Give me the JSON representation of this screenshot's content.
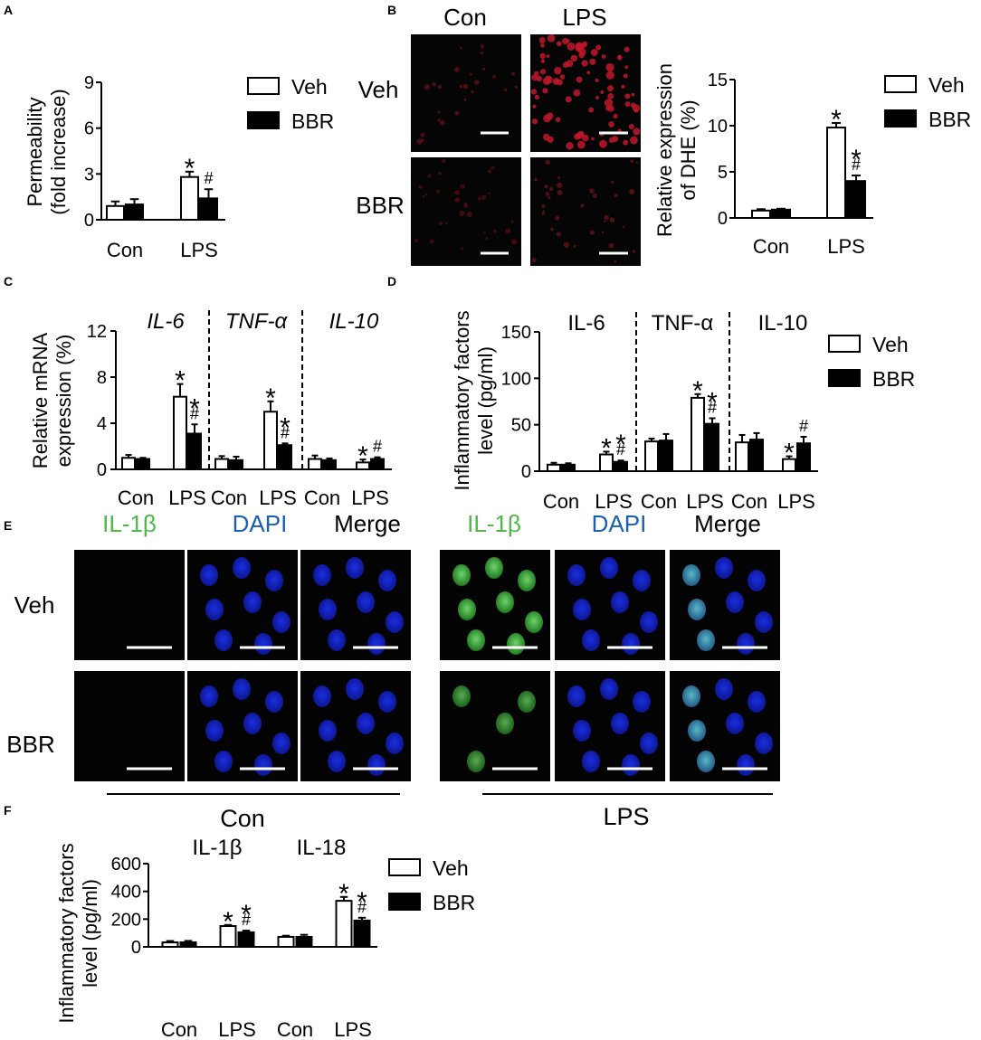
{
  "panels": {
    "a": {
      "letter": "A"
    },
    "b": {
      "letter": "B"
    },
    "c": {
      "letter": "C"
    },
    "d": {
      "letter": "D"
    },
    "e": {
      "letter": "E"
    },
    "f": {
      "letter": "F"
    }
  },
  "legend": {
    "veh": "Veh",
    "bbr": "BBR"
  },
  "annotations": {
    "star": "*",
    "hash": "#"
  },
  "colors": {
    "veh_fill": "#ffffff",
    "bbr_fill": "#000000",
    "il1b": "#4db848",
    "dapi": "#1a5fb4"
  },
  "micrographs_b": {
    "col_con": "Con",
    "col_lps": "LPS",
    "row_veh": "Veh",
    "row_bbr": "BBR"
  },
  "micrographs_e": {
    "ch_il1b": "IL-1β",
    "ch_dapi": "DAPI",
    "ch_merge": "Merge",
    "row_veh": "Veh",
    "row_bbr": "BBR",
    "group_con": "Con",
    "group_lps": "LPS"
  },
  "chart_data": [
    {
      "id": "A",
      "type": "bar",
      "ylabel": "Permeability",
      "ylabel2": "(fold increase)",
      "categories": [
        "Con",
        "LPS"
      ],
      "ylim": [
        0,
        9
      ],
      "yticks": [
        0,
        3,
        6,
        9
      ],
      "series": [
        {
          "name": "Veh",
          "values": [
            0.9,
            2.8
          ],
          "errors": [
            0.3,
            0.35
          ]
        },
        {
          "name": "BBR",
          "values": [
            1.0,
            1.4
          ],
          "errors": [
            0.35,
            0.6
          ]
        }
      ],
      "marks": [
        {
          "cat": 1,
          "s": 0,
          "text": "*"
        },
        {
          "cat": 1,
          "s": 1,
          "text": "#"
        }
      ]
    },
    {
      "id": "B",
      "type": "bar",
      "ylabel": "Relative expression",
      "ylabel2": "of DHE (%)",
      "categories": [
        "Con",
        "LPS"
      ],
      "ylim": [
        0,
        15
      ],
      "yticks": [
        0,
        5,
        10,
        15
      ],
      "series": [
        {
          "name": "Veh",
          "values": [
            0.8,
            9.8
          ],
          "errors": [
            0.15,
            0.5
          ]
        },
        {
          "name": "BBR",
          "values": [
            0.9,
            4.0
          ],
          "errors": [
            0.1,
            0.6
          ]
        }
      ],
      "marks": [
        {
          "cat": 1,
          "s": 0,
          "text": "*"
        },
        {
          "cat": 1,
          "s": 1,
          "text": "*#"
        }
      ]
    },
    {
      "id": "C",
      "type": "bar",
      "ylabel": "Relative mRNA",
      "ylabel2": "expression (%)",
      "groups": [
        "IL-6",
        "TNF-α",
        "IL-10"
      ],
      "italic_groups": true,
      "categories": [
        "Con",
        "LPS",
        "Con",
        "LPS",
        "Con",
        "LPS"
      ],
      "ylim": [
        0,
        12
      ],
      "yticks": [
        0,
        4,
        8,
        12
      ],
      "series": [
        {
          "name": "Veh",
          "values": [
            1.0,
            6.3,
            0.9,
            5.0,
            0.9,
            0.6
          ],
          "errors": [
            0.25,
            1.1,
            0.25,
            0.9,
            0.3,
            0.25
          ]
        },
        {
          "name": "BBR",
          "values": [
            0.9,
            3.1,
            0.8,
            2.1,
            0.8,
            0.9
          ],
          "errors": [
            0.1,
            0.8,
            0.3,
            0.15,
            0.15,
            0.15
          ]
        }
      ],
      "marks": [
        {
          "cat": 1,
          "s": 0,
          "text": "*"
        },
        {
          "cat": 1,
          "s": 1,
          "text": "*#"
        },
        {
          "cat": 3,
          "s": 0,
          "text": "*"
        },
        {
          "cat": 3,
          "s": 1,
          "text": "*#"
        },
        {
          "cat": 5,
          "s": 0,
          "text": "*"
        },
        {
          "cat": 5,
          "s": 1,
          "text": "#"
        }
      ]
    },
    {
      "id": "D",
      "type": "bar",
      "ylabel": "Inflammatory factors",
      "ylabel2": "level (pg/ml)",
      "groups": [
        "IL-6",
        "TNF-α",
        "IL-10"
      ],
      "italic_groups": false,
      "categories": [
        "Con",
        "LPS",
        "Con",
        "LPS",
        "Con",
        "LPS"
      ],
      "ylim": [
        0,
        150
      ],
      "yticks": [
        0,
        50,
        100,
        150
      ],
      "series": [
        {
          "name": "Veh",
          "values": [
            7,
            18,
            32,
            79,
            31,
            13
          ],
          "errors": [
            2,
            3,
            3,
            4,
            8,
            3
          ]
        },
        {
          "name": "BBR",
          "values": [
            7,
            10,
            33,
            51,
            34,
            30
          ],
          "errors": [
            1.5,
            1.5,
            7,
            6,
            7,
            7
          ]
        }
      ],
      "marks": [
        {
          "cat": 1,
          "s": 0,
          "text": "*"
        },
        {
          "cat": 1,
          "s": 1,
          "text": "*#"
        },
        {
          "cat": 3,
          "s": 0,
          "text": "*"
        },
        {
          "cat": 3,
          "s": 1,
          "text": "*#"
        },
        {
          "cat": 5,
          "s": 0,
          "text": "*"
        },
        {
          "cat": 5,
          "s": 1,
          "text": "#"
        }
      ]
    },
    {
      "id": "F",
      "type": "bar",
      "ylabel": "Inflammatory factors",
      "ylabel2": "level (pg/ml)",
      "groups": [
        "IL-1β",
        "IL-18"
      ],
      "italic_groups": false,
      "categories": [
        "Con",
        "LPS",
        "Con",
        "LPS"
      ],
      "ylim": [
        0,
        600
      ],
      "yticks": [
        0,
        200,
        400,
        600
      ],
      "series": [
        {
          "name": "Veh",
          "values": [
            32,
            150,
            72,
            332
          ],
          "errors": [
            10,
            8,
            8,
            28
          ]
        },
        {
          "name": "BBR",
          "values": [
            33,
            105,
            72,
            190
          ],
          "errors": [
            10,
            12,
            15,
            20
          ]
        }
      ],
      "marks": [
        {
          "cat": 1,
          "s": 0,
          "text": "*"
        },
        {
          "cat": 1,
          "s": 1,
          "text": "*#"
        },
        {
          "cat": 3,
          "s": 0,
          "text": "*"
        },
        {
          "cat": 3,
          "s": 1,
          "text": "*#"
        }
      ]
    }
  ]
}
